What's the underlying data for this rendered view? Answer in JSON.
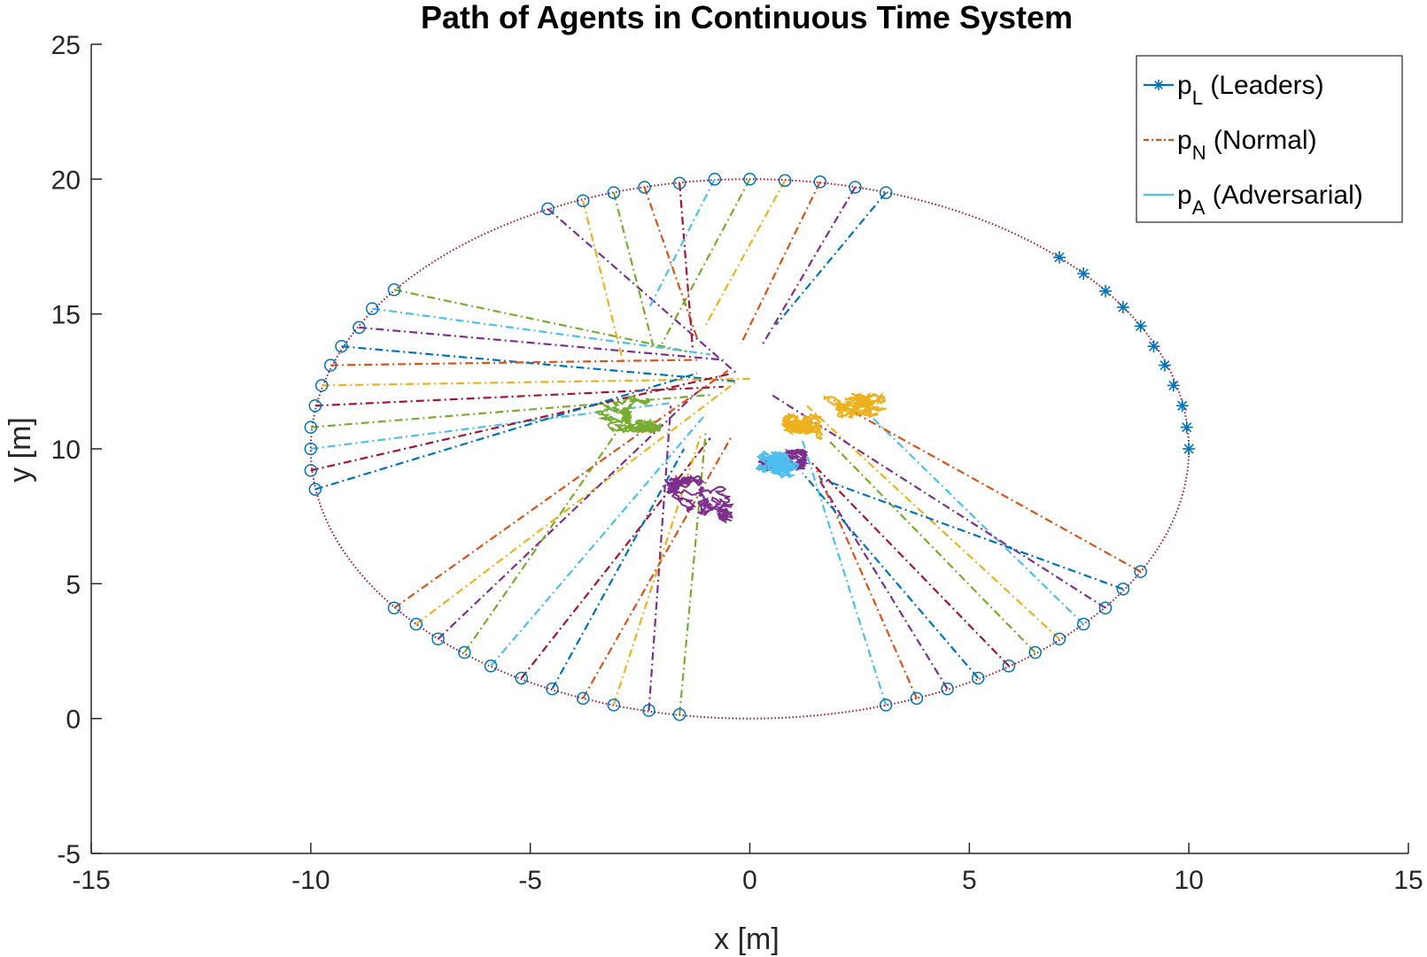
{
  "chart_data": {
    "type": "line",
    "title": "Path of Agents in Continuous Time System",
    "xlabel": "x [m]",
    "ylabel": "y [m]",
    "xlim": [
      -15,
      15
    ],
    "ylim": [
      -5,
      25
    ],
    "xticks": [
      "-15",
      "-10",
      "-5",
      "0",
      "5",
      "10",
      "15"
    ],
    "yticks": [
      "-5",
      "0",
      "5",
      "10",
      "15",
      "20",
      "25"
    ],
    "grid": false,
    "legend_position": "top-right",
    "legend": [
      {
        "main": "p",
        "sub": "L",
        "rest": " (Leaders)",
        "style": "star",
        "color": "#0072BD"
      },
      {
        "main": "p",
        "sub": "N",
        "rest": " (Normal)",
        "style": "dashdot",
        "color": "#D95319"
      },
      {
        "main": "p",
        "sub": "A",
        "rest": " (Adversarial)",
        "style": "solid",
        "color": "#4DBEEE"
      }
    ],
    "boundary": {
      "shape": "ellipse",
      "center": [
        0,
        10
      ],
      "rx": 10,
      "ry": 10,
      "color": "#A2142F"
    },
    "leaders": [
      [
        7.05,
        17.1
      ],
      [
        7.6,
        16.5
      ],
      [
        8.1,
        15.85
      ],
      [
        8.5,
        15.25
      ],
      [
        8.9,
        14.55
      ],
      [
        9.2,
        13.8
      ],
      [
        9.45,
        13.1
      ],
      [
        9.65,
        12.35
      ],
      [
        9.85,
        11.6
      ],
      [
        9.95,
        10.8
      ],
      [
        10.0,
        10.0
      ]
    ],
    "normal_paths": [
      {
        "color": "#7E2F8E",
        "start": [
          -4.6,
          18.9
        ],
        "end": [
          -0.3,
          12.8
        ]
      },
      {
        "color": "#EDB120",
        "start": [
          -3.8,
          19.2
        ],
        "end": [
          -2.9,
          13.3
        ]
      },
      {
        "color": "#77AC30",
        "start": [
          -3.1,
          19.5
        ],
        "end": [
          -2.2,
          13.8
        ]
      },
      {
        "color": "#D95319",
        "start": [
          -2.4,
          19.7
        ],
        "end": [
          -1.2,
          14.1
        ]
      },
      {
        "color": "#A2142F",
        "start": [
          -1.6,
          19.85
        ],
        "end": [
          -1.3,
          13.7
        ]
      },
      {
        "color": "#4DBEEE",
        "start": [
          -0.8,
          20.0
        ],
        "end": [
          -2.3,
          15.2
        ]
      },
      {
        "color": "#77AC30",
        "start": [
          0.0,
          20.0
        ],
        "end": [
          -2.0,
          13.9
        ]
      },
      {
        "color": "#EDB120",
        "start": [
          0.8,
          19.95
        ],
        "end": [
          -1.0,
          14.6
        ]
      },
      {
        "color": "#D95319",
        "start": [
          1.6,
          19.9
        ],
        "end": [
          -0.2,
          13.9
        ]
      },
      {
        "color": "#7E2F8E",
        "start": [
          2.4,
          19.7
        ],
        "end": [
          0.3,
          13.9
        ]
      },
      {
        "color": "#0072BD",
        "start": [
          3.1,
          19.5
        ],
        "end": [
          0.6,
          14.6
        ]
      },
      {
        "color": "#77AC30",
        "start": [
          -8.1,
          15.9
        ],
        "end": [
          -1.4,
          13.6
        ]
      },
      {
        "color": "#4DBEEE",
        "start": [
          -8.6,
          15.2
        ],
        "end": [
          -0.9,
          13.5
        ]
      },
      {
        "color": "#7E2F8E",
        "start": [
          -8.9,
          14.5
        ],
        "end": [
          -0.6,
          13.3
        ]
      },
      {
        "color": "#0072BD",
        "start": [
          -9.3,
          13.8
        ],
        "end": [
          -0.3,
          12.5
        ]
      },
      {
        "color": "#D95319",
        "start": [
          -9.55,
          13.1
        ],
        "end": [
          -1.2,
          13.3
        ]
      },
      {
        "color": "#EDB120",
        "start": [
          -9.75,
          12.35
        ],
        "end": [
          0.0,
          12.6
        ]
      },
      {
        "color": "#A2142F",
        "start": [
          -9.9,
          11.6
        ],
        "end": [
          -0.6,
          12.3
        ]
      },
      {
        "color": "#77AC30",
        "start": [
          -10.0,
          10.8
        ],
        "end": [
          -0.9,
          12.0
        ]
      },
      {
        "color": "#4DBEEE",
        "start": [
          -10.0,
          10.0
        ],
        "end": [
          -1.8,
          11.7
        ]
      },
      {
        "color": "#A2142F",
        "start": [
          -10.0,
          9.2
        ],
        "end": [
          -0.4,
          12.8
        ]
      },
      {
        "color": "#0072BD",
        "start": [
          -9.9,
          8.5
        ],
        "end": [
          -1.2,
          12.8
        ]
      },
      {
        "color": "#D95319",
        "start": [
          -8.1,
          4.1
        ],
        "end": [
          -0.5,
          12.9
        ]
      },
      {
        "color": "#EDB120",
        "start": [
          -7.6,
          3.5
        ],
        "end": [
          -0.3,
          12.5
        ]
      },
      {
        "color": "#7E2F8E",
        "start": [
          -7.1,
          2.95
        ],
        "end": [
          -1.2,
          12.1
        ]
      },
      {
        "color": "#77AC30",
        "start": [
          -6.5,
          2.45
        ],
        "end": [
          -2.7,
          11.4
        ]
      },
      {
        "color": "#4DBEEE",
        "start": [
          -5.9,
          1.95
        ],
        "end": [
          -1.0,
          11.3
        ]
      },
      {
        "color": "#A2142F",
        "start": [
          -5.2,
          1.5
        ],
        "end": [
          -0.9,
          10.4
        ]
      },
      {
        "color": "#0072BD",
        "start": [
          -4.5,
          1.1
        ],
        "end": [
          -1.5,
          10.0
        ]
      },
      {
        "color": "#D95319",
        "start": [
          -3.8,
          0.75
        ],
        "end": [
          -0.4,
          10.5
        ]
      },
      {
        "color": "#EDB120",
        "start": [
          -3.1,
          0.5
        ],
        "end": [
          -1.1,
          10.6
        ]
      },
      {
        "color": "#7E2F8E",
        "start": [
          -2.3,
          0.3
        ],
        "end": [
          -1.8,
          11.6
        ]
      },
      {
        "color": "#77AC30",
        "start": [
          -1.6,
          0.15
        ],
        "end": [
          -1.0,
          10.7
        ]
      },
      {
        "color": "#4DBEEE",
        "start": [
          3.1,
          0.5
        ],
        "end": [
          1.2,
          10.3
        ]
      },
      {
        "color": "#D95319",
        "start": [
          3.8,
          0.75
        ],
        "end": [
          1.5,
          9.3
        ]
      },
      {
        "color": "#7E2F8E",
        "start": [
          4.5,
          1.1
        ],
        "end": [
          1.6,
          8.8
        ]
      },
      {
        "color": "#0072BD",
        "start": [
          5.2,
          1.5
        ],
        "end": [
          1.2,
          9.1
        ]
      },
      {
        "color": "#A2142F",
        "start": [
          5.9,
          1.95
        ],
        "end": [
          1.4,
          9.5
        ]
      },
      {
        "color": "#77AC30",
        "start": [
          6.5,
          2.45
        ],
        "end": [
          1.8,
          10.3
        ]
      },
      {
        "color": "#EDB120",
        "start": [
          7.05,
          2.95
        ],
        "end": [
          1.3,
          11.6
        ]
      },
      {
        "color": "#4DBEEE",
        "start": [
          7.6,
          3.5
        ],
        "end": [
          2.7,
          11.3
        ]
      },
      {
        "color": "#7E2F8E",
        "start": [
          8.1,
          4.1
        ],
        "end": [
          0.5,
          12.0
        ]
      },
      {
        "color": "#0072BD",
        "start": [
          8.5,
          4.8
        ],
        "end": [
          1.6,
          8.9
        ]
      },
      {
        "color": "#D95319",
        "start": [
          8.9,
          5.45
        ],
        "end": [
          2.1,
          11.6
        ]
      }
    ],
    "clusters": [
      {
        "color": "#77AC30",
        "center": [
          -2.8,
          11.3
        ],
        "spread": [
          1.6,
          1.4
        ]
      },
      {
        "color": "#EDB120",
        "center": [
          2.4,
          11.6
        ],
        "spread": [
          1.5,
          0.9
        ]
      },
      {
        "color": "#EDB120",
        "center": [
          1.2,
          10.8
        ],
        "spread": [
          0.9,
          1.0
        ]
      },
      {
        "color": "#7E2F8E",
        "center": [
          -1.2,
          8.0
        ],
        "spread": [
          1.6,
          2.0
        ]
      },
      {
        "color": "#7E2F8E",
        "center": [
          0.5,
          9.6
        ],
        "spread": [
          1.6,
          0.8
        ]
      },
      {
        "color": "#4DBEEE",
        "center": [
          0.5,
          9.4
        ],
        "spread": [
          3.0,
          1.0
        ]
      }
    ]
  }
}
